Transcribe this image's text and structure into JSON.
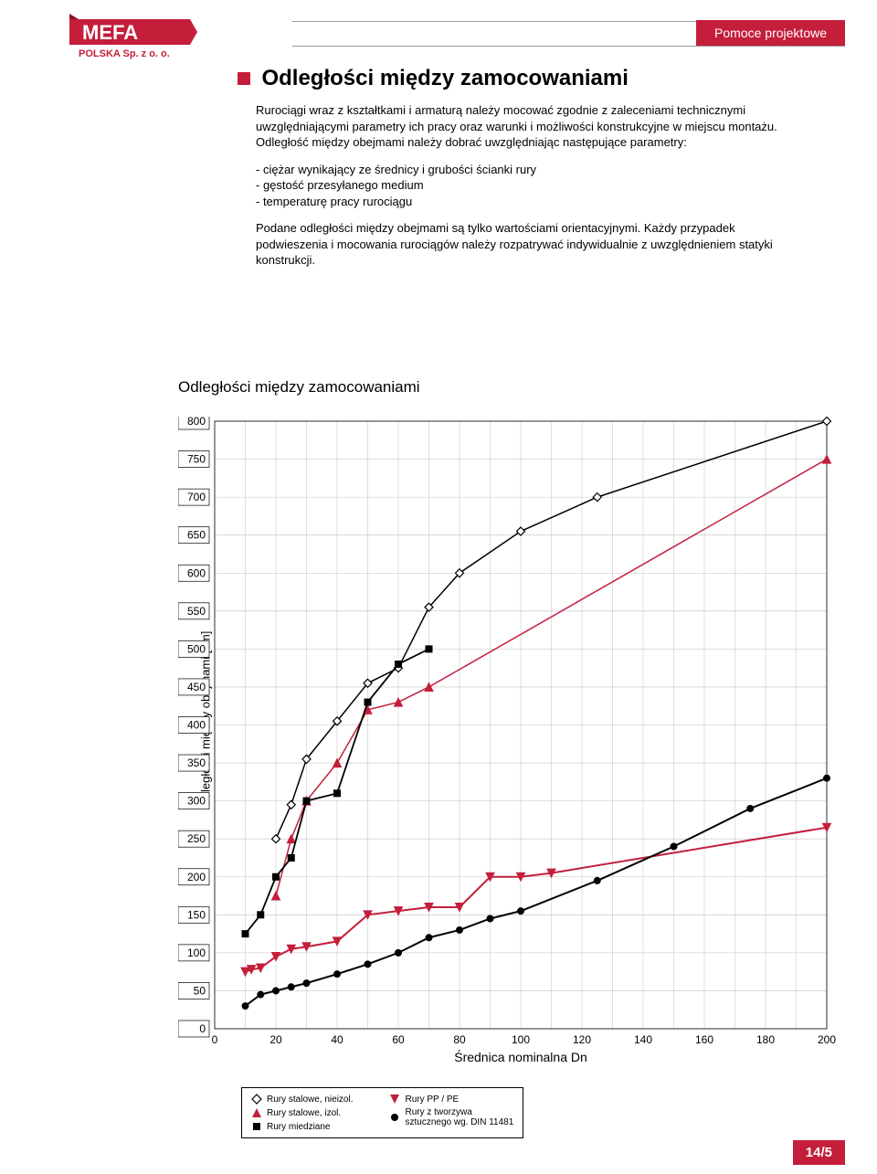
{
  "header": {
    "badge": "Pomoce projektowe",
    "logo_main": "MEFA",
    "logo_sub": "POLSKA Sp. z o. o."
  },
  "title": "Odległości między zamocowaniami",
  "paragraphs": [
    "Rurociągi wraz z kształtkami i armaturą należy mocować zgodnie z zaleceniami technicznymi uwzględniającymi parametry ich pracy oraz warunki i możliwości konstrukcyjne w miejscu montażu. Odległość między obejmami należy dobrać uwzględniając następujące parametry:",
    "- ciężar wynikający ze średnicy i grubości ścianki rury",
    "- gęstość przesyłanego medium",
    "- temperaturę pracy rurociągu",
    "Podane odległości między obejmami są tylko wartościami orientacyjnymi. Każdy przypadek podwieszenia i mocowania rurociągów należy rozpatrywać indywidualnie z uwzględnieniem statyki konstrukcji."
  ],
  "chart": {
    "title": "Odległości między zamocowaniami",
    "xlabel": "Średnica nominalna Dn",
    "ylabel": "Odległości między obejmami [cm]",
    "xlim": [
      0,
      200
    ],
    "ylim": [
      0,
      800
    ],
    "xtick_step": 20,
    "ytick_step": 50,
    "yticks": [
      0,
      50,
      100,
      150,
      200,
      250,
      300,
      350,
      400,
      450,
      500,
      550,
      600,
      650,
      700,
      750,
      800
    ],
    "xticks": [
      0,
      20,
      40,
      60,
      80,
      100,
      120,
      140,
      160,
      180,
      200
    ],
    "grid_color": "#c0c0c0",
    "background": "#ffffff",
    "series": [
      {
        "name": "Rury stalowe, nieizol.",
        "marker": "diamond-open",
        "color": "#000000",
        "line_color": "#000000",
        "line_width": 1.5,
        "data": [
          [
            20,
            250
          ],
          [
            25,
            295
          ],
          [
            30,
            355
          ],
          [
            40,
            405
          ],
          [
            50,
            455
          ],
          [
            60,
            475
          ],
          [
            70,
            555
          ],
          [
            80,
            600
          ],
          [
            100,
            655
          ],
          [
            125,
            700
          ],
          [
            200,
            800
          ]
        ]
      },
      {
        "name": "Rury stalowe, izol.",
        "marker": "triangle-up",
        "color": "#c41e3a",
        "line_color": "#c41e3a",
        "line_width": 1.5,
        "data": [
          [
            20,
            175
          ],
          [
            25,
            250
          ],
          [
            30,
            300
          ],
          [
            40,
            350
          ],
          [
            50,
            420
          ],
          [
            60,
            430
          ],
          [
            70,
            450
          ],
          [
            200,
            750
          ]
        ]
      },
      {
        "name": "Rury miedziane",
        "marker": "square",
        "color": "#000000",
        "line_color": "#000000",
        "line_width": 1.8,
        "data": [
          [
            10,
            125
          ],
          [
            15,
            150
          ],
          [
            20,
            200
          ],
          [
            25,
            225
          ],
          [
            30,
            300
          ],
          [
            40,
            310
          ],
          [
            50,
            430
          ],
          [
            60,
            480
          ],
          [
            70,
            500
          ]
        ]
      },
      {
        "name": "Rury PP / PE",
        "marker": "triangle-down",
        "color": "#c41e3a",
        "line_color": "#c41e3a",
        "line_width": 2,
        "data": [
          [
            10,
            75
          ],
          [
            12,
            78
          ],
          [
            15,
            80
          ],
          [
            20,
            95
          ],
          [
            25,
            105
          ],
          [
            30,
            108
          ],
          [
            40,
            115
          ],
          [
            50,
            150
          ],
          [
            60,
            155
          ],
          [
            70,
            160
          ],
          [
            80,
            160
          ],
          [
            90,
            200
          ],
          [
            100,
            200
          ],
          [
            110,
            205
          ],
          [
            200,
            265
          ]
        ]
      },
      {
        "name": "Rury z tworzywa sztucznego wg. DIN 11481",
        "marker": "circle",
        "color": "#000000",
        "line_color": "#000000",
        "line_width": 2,
        "data": [
          [
            10,
            30
          ],
          [
            15,
            45
          ],
          [
            20,
            50
          ],
          [
            25,
            55
          ],
          [
            30,
            60
          ],
          [
            40,
            72
          ],
          [
            50,
            85
          ],
          [
            60,
            100
          ],
          [
            70,
            120
          ],
          [
            80,
            130
          ],
          [
            90,
            145
          ],
          [
            100,
            155
          ],
          [
            125,
            195
          ],
          [
            150,
            240
          ],
          [
            175,
            290
          ],
          [
            200,
            330
          ]
        ]
      }
    ]
  },
  "legend": {
    "col1": [
      {
        "marker": "diamond-open",
        "color": "#000000",
        "label": "Rury stalowe, nieizol."
      },
      {
        "marker": "triangle-up",
        "color": "#c41e3a",
        "label": "Rury stalowe, izol."
      },
      {
        "marker": "square",
        "color": "#000000",
        "label": "Rury miedziane"
      }
    ],
    "col2": [
      {
        "marker": "triangle-down",
        "color": "#c41e3a",
        "label": "Rury PP / PE"
      },
      {
        "marker": "circle",
        "color": "#000000",
        "label": "Rury z tworzywa",
        "label2": "sztucznego wg. DIN 11481"
      }
    ]
  },
  "footer": "14/5"
}
